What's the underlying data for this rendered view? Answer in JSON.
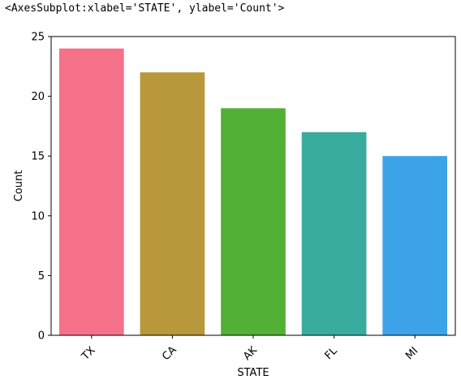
{
  "output_repr": "<AxesSubplot:xlabel='STATE', ylabel='Count'>",
  "chart_data": {
    "type": "bar",
    "categories": [
      "TX",
      "CA",
      "AK",
      "FL",
      "MI"
    ],
    "values": [
      24,
      22,
      19,
      17,
      15
    ],
    "colors": [
      "#f5718a",
      "#b8983a",
      "#52b035",
      "#39ab9f",
      "#3da3e8"
    ],
    "xlabel": "STATE",
    "ylabel": "Count",
    "ylim": [
      0,
      25
    ],
    "yticks": [
      0,
      5,
      10,
      15,
      20,
      25
    ],
    "grid": false
  }
}
